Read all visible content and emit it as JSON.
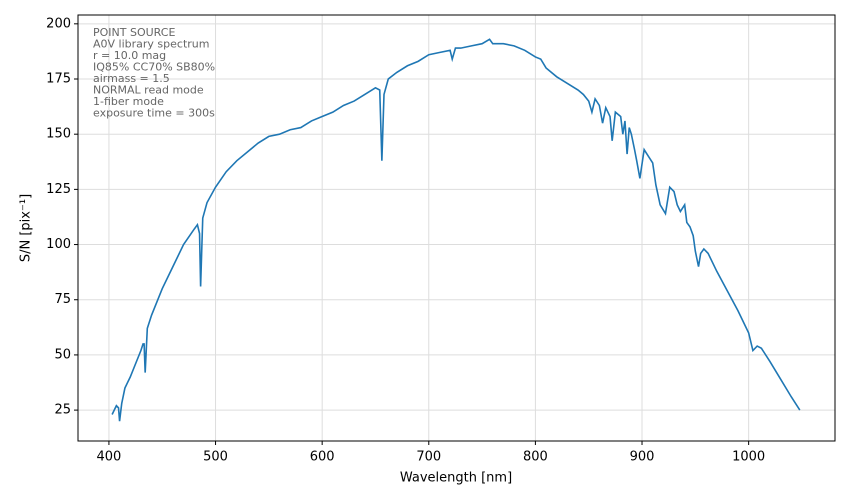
{
  "chart_data": {
    "type": "line",
    "xlabel": "Wavelength [nm]",
    "ylabel": "S/N [pix⁻¹]",
    "annotation": [
      "POINT SOURCE",
      "A0V library spectrum",
      "r = 10.0 mag",
      "IQ85%  CC70%  SB80%",
      "airmass = 1.5",
      "NORMAL read mode",
      "1-fiber mode",
      "exposure time = 300s"
    ],
    "xlim": [
      371,
      1081
    ],
    "ylim": [
      11,
      204
    ],
    "xticks": [
      400,
      500,
      600,
      700,
      800,
      900,
      1000
    ],
    "yticks": [
      25,
      50,
      75,
      100,
      125,
      150,
      175,
      200
    ],
    "grid": true,
    "series": [
      {
        "color": "#1f77b4",
        "x": [
          403,
          407,
          409,
          410,
          412,
          415,
          420,
          425,
          430,
          432,
          433,
          434,
          436,
          440,
          450,
          460,
          470,
          480,
          483,
          485,
          486,
          488,
          492,
          500,
          510,
          520,
          530,
          540,
          550,
          560,
          570,
          580,
          590,
          600,
          610,
          620,
          630,
          640,
          650,
          654,
          656,
          658,
          662,
          670,
          680,
          690,
          700,
          710,
          720,
          722,
          725,
          730,
          740,
          750,
          757,
          760,
          770,
          780,
          790,
          800,
          805,
          810,
          820,
          830,
          840,
          845,
          850,
          853,
          856,
          860,
          863,
          866,
          870,
          872,
          875,
          880,
          882,
          884,
          886,
          888,
          890,
          893,
          895,
          898,
          902,
          906,
          910,
          913,
          917,
          922,
          926,
          930,
          933,
          936,
          940,
          942,
          945,
          948,
          950,
          953,
          955,
          958,
          962,
          970,
          980,
          990,
          1000,
          1004,
          1008,
          1012,
          1020,
          1030,
          1040,
          1048
        ],
        "values": [
          23,
          27,
          26,
          20,
          28,
          35,
          40,
          46,
          52,
          55,
          55,
          42,
          62,
          68,
          80,
          90,
          100,
          107,
          109,
          105,
          81,
          112,
          119,
          126,
          133,
          138,
          142,
          146,
          149,
          150,
          152,
          153,
          156,
          158,
          160,
          163,
          165,
          168,
          171,
          170,
          138,
          168,
          175,
          178,
          181,
          183,
          186,
          187,
          188,
          184,
          189,
          189,
          190,
          191,
          193,
          191,
          191,
          190,
          188,
          185,
          184,
          180,
          176,
          173,
          170,
          168,
          165,
          160,
          166,
          163,
          155,
          162,
          158,
          147,
          160,
          158,
          150,
          156,
          141,
          153,
          150,
          143,
          138,
          130,
          143,
          140,
          137,
          127,
          118,
          114,
          126,
          124,
          118,
          115,
          118,
          110,
          108,
          104,
          97,
          90,
          96,
          98,
          96,
          88,
          79,
          70,
          60,
          52,
          54,
          53,
          47,
          39,
          31,
          25
        ]
      }
    ]
  }
}
